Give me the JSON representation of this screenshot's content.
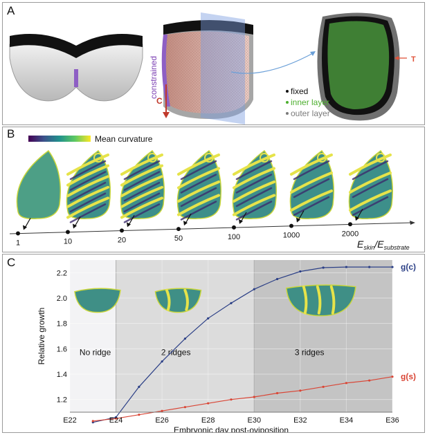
{
  "panel_a": {
    "label": "A",
    "constrained_label": "constrained",
    "c_label": "C",
    "t_label": "T",
    "legend": [
      {
        "text": "fixed",
        "color": "#111111"
      },
      {
        "text": "inner layer",
        "color": "#4caf2e"
      },
      {
        "text": "outer layer",
        "color": "#7a7a7a"
      }
    ]
  },
  "panel_b": {
    "label": "B",
    "colorbar_label": "Mean curvature",
    "ticks": [
      "1",
      "10",
      "20",
      "50",
      "100",
      "1000",
      "2000"
    ],
    "axis_label": "E_skin / E_substrate",
    "axis_label_main": "E",
    "axis_label_sub1": "skin",
    "axis_label_slash": "/",
    "axis_label_main2": "E",
    "axis_label_sub2": "substrate"
  },
  "panel_c": {
    "label": "C",
    "region_labels": [
      "No ridge",
      "2 ridges",
      "3 ridges"
    ],
    "colors": {
      "gc": "#2b3f86",
      "gs": "#d94535"
    }
  },
  "chart_data": {
    "type": "line",
    "xlabel": "Embryonic day post-oviposition",
    "ylabel": "Relative growth",
    "xlim": [
      22,
      36
    ],
    "ylim": [
      1.1,
      2.3
    ],
    "x_ticks": [
      "E22",
      "E24",
      "E26",
      "E28",
      "E30",
      "E32",
      "E34",
      "E36"
    ],
    "y_ticks": [
      "1.2",
      "1.4",
      "1.6",
      "1.8",
      "2.0",
      "2.2"
    ],
    "regions": [
      {
        "label": "No ridge",
        "x_start": 22,
        "x_end": 24
      },
      {
        "label": "2 ridges",
        "x_start": 24,
        "x_end": 30
      },
      {
        "label": "3 ridges",
        "x_start": 30,
        "x_end": 36
      }
    ],
    "series": [
      {
        "name": "g(c)",
        "x": [
          23,
          24,
          25,
          26,
          27,
          28,
          29,
          30,
          31,
          32,
          33,
          34,
          35,
          36
        ],
        "y": [
          1.02,
          1.06,
          1.3,
          1.5,
          1.68,
          1.84,
          1.96,
          2.07,
          2.15,
          2.21,
          2.24,
          2.245,
          2.245,
          2.245
        ]
      },
      {
        "name": "g(s)",
        "x": [
          23,
          24,
          25,
          26,
          27,
          28,
          29,
          30,
          31,
          32,
          33,
          34,
          35,
          36
        ],
        "y": [
          1.03,
          1.05,
          1.08,
          1.11,
          1.14,
          1.17,
          1.2,
          1.22,
          1.25,
          1.27,
          1.3,
          1.33,
          1.35,
          1.38
        ]
      }
    ]
  }
}
